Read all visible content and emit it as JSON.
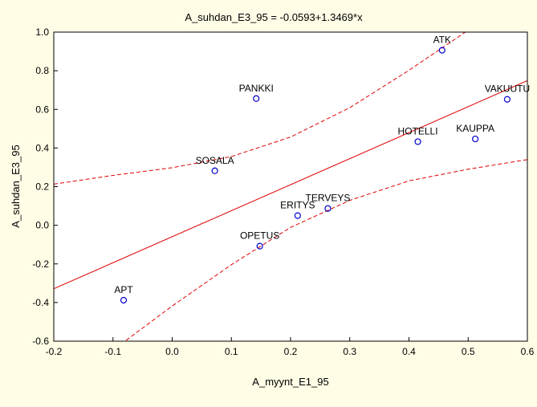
{
  "chart_data": {
    "type": "scatter",
    "title": "A_suhdan_E3_95 = -0.0593+1.3469*x",
    "xlabel": "A_myynt_E1_95",
    "ylabel": "A_suhdan_E3_95",
    "xlim": [
      -0.2,
      0.6
    ],
    "ylim": [
      -0.6,
      1.0
    ],
    "x_ticks": [
      -0.2,
      -0.1,
      0.0,
      0.1,
      0.2,
      0.3,
      0.4,
      0.5,
      0.6
    ],
    "x_tick_labels": [
      "-0.2",
      "-0.1",
      "0.0",
      "0.1",
      "0.2",
      "0.3",
      "0.4",
      "0.5",
      "0.6"
    ],
    "y_ticks": [
      -0.6,
      -0.4,
      -0.2,
      0.0,
      0.2,
      0.4,
      0.6,
      0.8,
      1.0
    ],
    "y_tick_labels": [
      "-0.6",
      "-0.4",
      "-0.2",
      "0.0",
      "0.2",
      "0.4",
      "0.6",
      "0.8",
      "1.0"
    ],
    "grid": false,
    "points": [
      {
        "label": "APT",
        "x": -0.082,
        "y": -0.388
      },
      {
        "label": "SOSALA",
        "x": 0.072,
        "y": 0.282
      },
      {
        "label": "PANKKI",
        "x": 0.142,
        "y": 0.656
      },
      {
        "label": "OPETUS",
        "x": 0.148,
        "y": -0.108
      },
      {
        "label": "ERITYS",
        "x": 0.212,
        "y": 0.05
      },
      {
        "label": "TERVEYS",
        "x": 0.263,
        "y": 0.087
      },
      {
        "label": "HOTELLI",
        "x": 0.415,
        "y": 0.433
      },
      {
        "label": "ATK",
        "x": 0.456,
        "y": 0.906
      },
      {
        "label": "KAUPPA",
        "x": 0.512,
        "y": 0.447
      },
      {
        "label": "VAKUUTU",
        "x": 0.566,
        "y": 0.652
      }
    ],
    "regression": {
      "intercept": -0.0593,
      "slope": 1.3469
    },
    "confidence_band_95": {
      "x": [
        -0.2,
        -0.1,
        0.0,
        0.1,
        0.2,
        0.3,
        0.4,
        0.5,
        0.6
      ],
      "upper": [
        0.213,
        0.258,
        0.298,
        0.356,
        0.457,
        0.609,
        0.802,
        1.01,
        1.2
      ],
      "lower": [
        -0.872,
        -0.646,
        -0.418,
        -0.204,
        -0.011,
        0.129,
        0.23,
        0.29,
        0.34
      ]
    },
    "colors": {
      "background": "#fffde6",
      "plot_background": "#ffffff",
      "points": "#0000cc",
      "regression": "#e00000"
    }
  }
}
